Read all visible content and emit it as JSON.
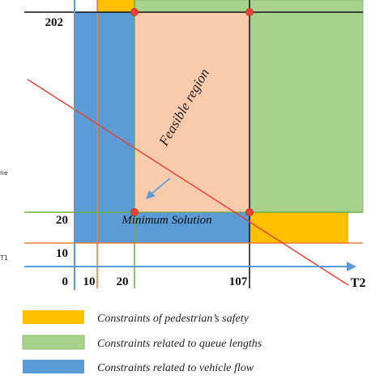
{
  "diagram": {
    "y_ticks": {
      "t202": "202",
      "t20": "20",
      "t10": "10",
      "t0": "0"
    },
    "x_ticks": {
      "t10": "10",
      "t20": "20",
      "t107": "107"
    },
    "x_axis_name": "T2",
    "edge_labels": {
      "upper": "ne",
      "lower": "T1"
    },
    "feasible_label": "Feasible region",
    "minimum_label": "Minimum Solution",
    "legend": [
      {
        "label": "Constraints of pedestrian’s safety",
        "color": "#ffc000"
      },
      {
        "label": "Constraints related to queue lengths",
        "color": "#a9d18e"
      },
      {
        "label": "Constraints related to vehicle flow",
        "color": "#5b9bd5"
      }
    ],
    "colors": {
      "pedestrian": "#ffc000",
      "queue": "#a9d18e",
      "vehicle": "#5b9bd5",
      "feasible": "#f8cbad",
      "constraint_line": "#e0463a",
      "axis": "#5b9bd5",
      "vertex": "#e8433a"
    }
  }
}
